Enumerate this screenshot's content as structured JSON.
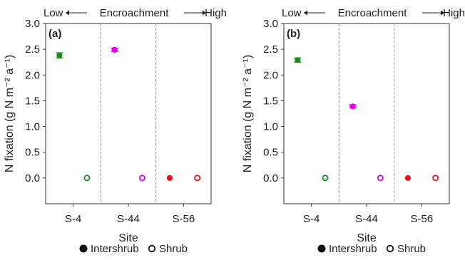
{
  "chart_data": [
    {
      "type": "scatter",
      "panel_label": "(a)",
      "header": {
        "low": "Low",
        "middle": "Encroachment",
        "high": "High"
      },
      "xlabel": "Site",
      "ylabel": "N fixation (g N m⁻² a⁻¹)",
      "categories": [
        "S-4",
        "S-44",
        "S-56"
      ],
      "ylim": [
        -0.5,
        3.0
      ],
      "yticks": [
        "0.0",
        "0.5",
        "1.0",
        "1.5",
        "2.0",
        "2.5",
        "3.0"
      ],
      "series": [
        {
          "name": "Intershrub",
          "marker": "filled",
          "values": [
            2.38,
            2.49,
            0.0
          ],
          "errors": [
            0.05,
            0.03,
            0.0
          ]
        },
        {
          "name": "Shrub",
          "marker": "open",
          "values": [
            0.0,
            0.0,
            0.0
          ],
          "errors": [
            0.0,
            0.0,
            0.0
          ]
        }
      ],
      "site_colors": [
        "#1f8a1f",
        "#e000e0",
        "#e8141e"
      ]
    },
    {
      "type": "scatter",
      "panel_label": "(b)",
      "header": {
        "low": "Low",
        "middle": "Encroachment",
        "high": "High"
      },
      "xlabel": "Site",
      "ylabel": "N fixation (g N m⁻² a⁻¹)",
      "categories": [
        "S-4",
        "S-44",
        "S-56"
      ],
      "ylim": [
        -0.5,
        3.0
      ],
      "yticks": [
        "0.0",
        "0.5",
        "1.0",
        "1.5",
        "2.0",
        "2.5",
        "3.0"
      ],
      "series": [
        {
          "name": "Intershrub",
          "marker": "filled",
          "values": [
            2.29,
            1.39,
            0.0
          ],
          "errors": [
            0.04,
            0.03,
            0.0
          ]
        },
        {
          "name": "Shrub",
          "marker": "open",
          "values": [
            0.0,
            0.0,
            0.0
          ],
          "errors": [
            0.0,
            0.0,
            0.0
          ]
        }
      ],
      "site_colors": [
        "#1f8a1f",
        "#e000e0",
        "#e8141e"
      ]
    }
  ],
  "legend": {
    "items": [
      "Intershrub",
      "Shrub"
    ],
    "placement": "bottom"
  }
}
